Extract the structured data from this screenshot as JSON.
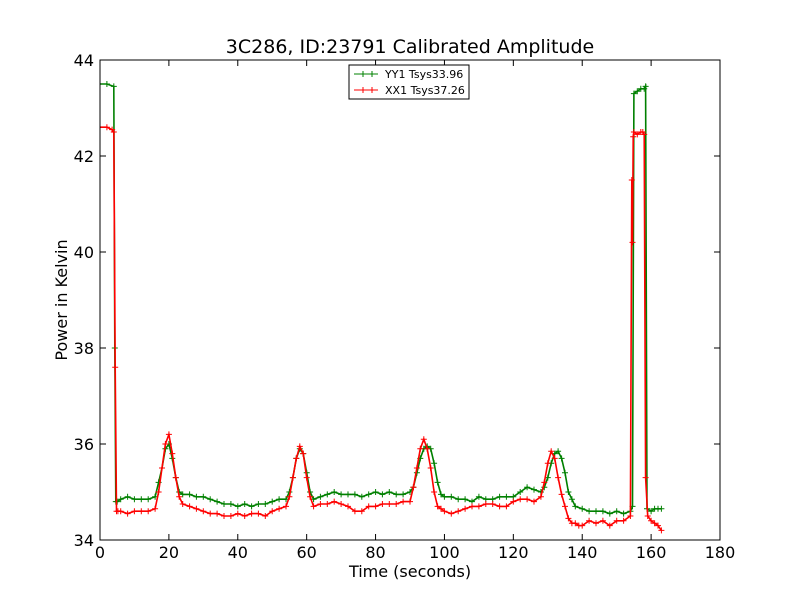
{
  "chart_data": {
    "type": "line",
    "title": "3C286, ID:23791 Calibrated Amplitude",
    "xlabel": "Time (seconds)",
    "ylabel": "Power in Kelvin",
    "xlim": [
      0,
      180
    ],
    "ylim": [
      34,
      44
    ],
    "xticks": [
      "0",
      "20",
      "40",
      "60",
      "80",
      "100",
      "120",
      "140",
      "160",
      "180"
    ],
    "yticks": [
      "34",
      "36",
      "38",
      "40",
      "42",
      "44"
    ],
    "grid": false,
    "legend_position": "top-center",
    "series": [
      {
        "name": "YY1 Tsys33.96",
        "color": "#008000",
        "marker": "+",
        "x": [
          0,
          2,
          4,
          4.3,
          4.6,
          5,
          6,
          8,
          10,
          12,
          14,
          16,
          17,
          18,
          19,
          20,
          21,
          22,
          23,
          24,
          26,
          28,
          30,
          32,
          34,
          36,
          38,
          40,
          42,
          44,
          46,
          48,
          50,
          52,
          54,
          55,
          56,
          57,
          58,
          59,
          60,
          61,
          62,
          64,
          66,
          68,
          70,
          72,
          74,
          76,
          78,
          80,
          82,
          84,
          86,
          88,
          90,
          91,
          92,
          93,
          94,
          95,
          96,
          97,
          98,
          99,
          100,
          102,
          104,
          106,
          108,
          110,
          112,
          114,
          116,
          118,
          120,
          122,
          124,
          126,
          128,
          129,
          130,
          131,
          132,
          133,
          134,
          135,
          136,
          137,
          138,
          140,
          142,
          144,
          146,
          148,
          150,
          152,
          154,
          154.6,
          155,
          156,
          157,
          158,
          158.4,
          158.8,
          160,
          161,
          162,
          163
        ],
        "y": [
          43.5,
          43.5,
          43.45,
          38.0,
          34.8,
          34.8,
          34.85,
          34.9,
          34.85,
          34.85,
          34.85,
          34.9,
          35.2,
          35.5,
          35.9,
          36.0,
          35.7,
          35.3,
          35.0,
          34.95,
          34.95,
          34.9,
          34.9,
          34.85,
          34.8,
          34.75,
          34.75,
          34.7,
          34.75,
          34.7,
          34.75,
          34.75,
          34.8,
          34.85,
          34.85,
          35.0,
          35.3,
          35.7,
          35.9,
          35.8,
          35.4,
          35.0,
          34.85,
          34.9,
          34.95,
          35.0,
          34.95,
          34.95,
          34.95,
          34.9,
          34.95,
          35.0,
          34.95,
          35.0,
          34.95,
          34.95,
          35.0,
          35.1,
          35.4,
          35.7,
          35.9,
          35.95,
          35.9,
          35.6,
          35.2,
          34.95,
          34.9,
          34.9,
          34.85,
          34.85,
          34.8,
          34.9,
          34.85,
          34.85,
          34.9,
          34.9,
          34.9,
          35.0,
          35.1,
          35.05,
          35.0,
          35.1,
          35.3,
          35.6,
          35.8,
          35.85,
          35.7,
          35.4,
          35.0,
          34.85,
          34.7,
          34.65,
          34.6,
          34.6,
          34.6,
          34.55,
          34.6,
          34.55,
          34.6,
          34.7,
          43.3,
          43.35,
          43.4,
          43.4,
          43.45,
          34.65,
          34.6,
          34.65,
          34.65,
          34.65
        ]
      },
      {
        "name": "XX1 Tsys37.26",
        "color": "#ff0000",
        "marker": "+",
        "x": [
          0,
          2,
          3.5,
          4,
          4.4,
          4.8,
          5.2,
          6,
          8,
          10,
          12,
          14,
          16,
          17,
          18,
          19,
          20,
          21,
          22,
          23,
          24,
          26,
          28,
          30,
          32,
          34,
          36,
          38,
          40,
          42,
          44,
          46,
          48,
          50,
          52,
          54,
          55,
          56,
          57,
          58,
          59,
          60,
          61,
          62,
          64,
          66,
          68,
          70,
          72,
          74,
          76,
          78,
          80,
          82,
          84,
          86,
          88,
          90,
          91,
          92,
          93,
          94,
          95,
          96,
          97,
          98,
          99,
          100,
          102,
          104,
          106,
          108,
          110,
          112,
          114,
          116,
          118,
          120,
          122,
          124,
          126,
          128,
          129,
          130,
          131,
          132,
          133,
          134,
          135,
          136,
          137,
          138,
          139,
          140,
          142,
          144,
          146,
          148,
          150,
          152,
          154,
          154.4,
          154.6,
          154.8,
          155,
          156,
          157,
          157.6,
          158,
          158.4,
          159,
          160,
          161,
          162,
          163
        ],
        "y": [
          42.6,
          42.6,
          42.55,
          42.5,
          37.6,
          34.6,
          34.6,
          34.6,
          34.55,
          34.6,
          34.6,
          34.6,
          34.65,
          35.0,
          35.5,
          36.0,
          36.2,
          35.8,
          35.3,
          34.9,
          34.75,
          34.7,
          34.65,
          34.6,
          34.55,
          34.55,
          34.5,
          34.5,
          34.55,
          34.5,
          34.55,
          34.55,
          34.5,
          34.6,
          34.65,
          34.7,
          34.9,
          35.3,
          35.7,
          35.95,
          35.8,
          35.3,
          34.9,
          34.7,
          34.75,
          34.75,
          34.8,
          34.75,
          34.7,
          34.6,
          34.6,
          34.7,
          34.7,
          34.75,
          34.75,
          34.75,
          34.8,
          34.8,
          35.1,
          35.5,
          35.9,
          36.1,
          35.9,
          35.5,
          35.0,
          34.7,
          34.65,
          34.6,
          34.55,
          34.6,
          34.65,
          34.7,
          34.7,
          34.75,
          34.75,
          34.7,
          34.7,
          34.8,
          34.85,
          34.85,
          34.8,
          34.9,
          35.2,
          35.6,
          35.85,
          35.7,
          35.3,
          34.95,
          34.7,
          34.45,
          34.35,
          34.35,
          34.3,
          34.3,
          34.4,
          34.35,
          34.4,
          34.3,
          34.4,
          34.4,
          34.5,
          41.5,
          40.2,
          42.4,
          42.5,
          42.45,
          42.5,
          42.5,
          42.45,
          35.3,
          34.5,
          34.4,
          34.35,
          34.3,
          34.2
        ]
      }
    ]
  }
}
